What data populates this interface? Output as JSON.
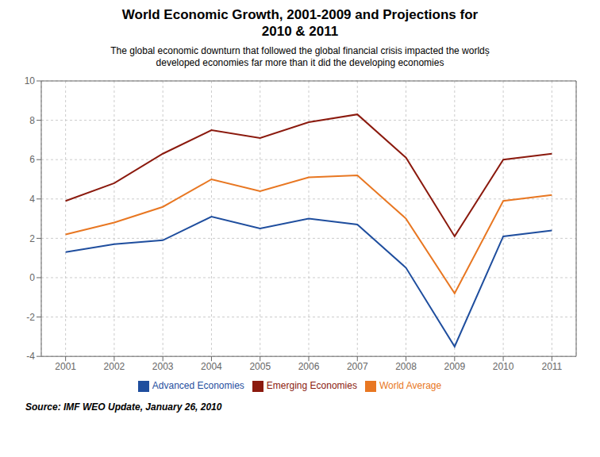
{
  "chart_data": {
    "type": "line",
    "title": [
      "World Economic Growth, 2001-2009 and Projections for",
      "2010 & 2011"
    ],
    "subtitle": [
      "The global economic downturn that followed the global financial crisis impacted the worldș",
      "developed economies far more than it did the developing economies"
    ],
    "annotations": [
      "Source: IMF  WEO Update, January 26, 2010"
    ],
    "x": [
      2001,
      2002,
      2003,
      2004,
      2005,
      2006,
      2007,
      2008,
      2009,
      2010,
      2011
    ],
    "series": [
      {
        "name": "Advanced Economies",
        "color": "#1f4e9e",
        "values": [
          1.3,
          1.7,
          1.9,
          3.1,
          2.5,
          3.0,
          2.7,
          0.5,
          -3.5,
          2.1,
          2.4
        ]
      },
      {
        "name": "Emerging Economies",
        "color": "#8b1a0e",
        "values": [
          3.9,
          4.8,
          6.3,
          7.5,
          7.1,
          7.9,
          8.3,
          6.1,
          2.1,
          6.0,
          6.3
        ]
      },
      {
        "name": "World Average",
        "color": "#e87722",
        "values": [
          2.2,
          2.8,
          3.6,
          5.0,
          4.4,
          5.1,
          5.2,
          3.0,
          -0.8,
          3.9,
          4.2
        ]
      }
    ],
    "xlim": [
      2000.5,
      2011.5
    ],
    "xticks": [
      2001,
      2002,
      2003,
      2004,
      2005,
      2006,
      2007,
      2008,
      2009,
      2010,
      2011
    ],
    "ylim": [
      -4,
      10
    ],
    "yticks": [
      -4,
      -2,
      0,
      2,
      4,
      6,
      8,
      10
    ],
    "grid": true,
    "legend": "bottom"
  }
}
